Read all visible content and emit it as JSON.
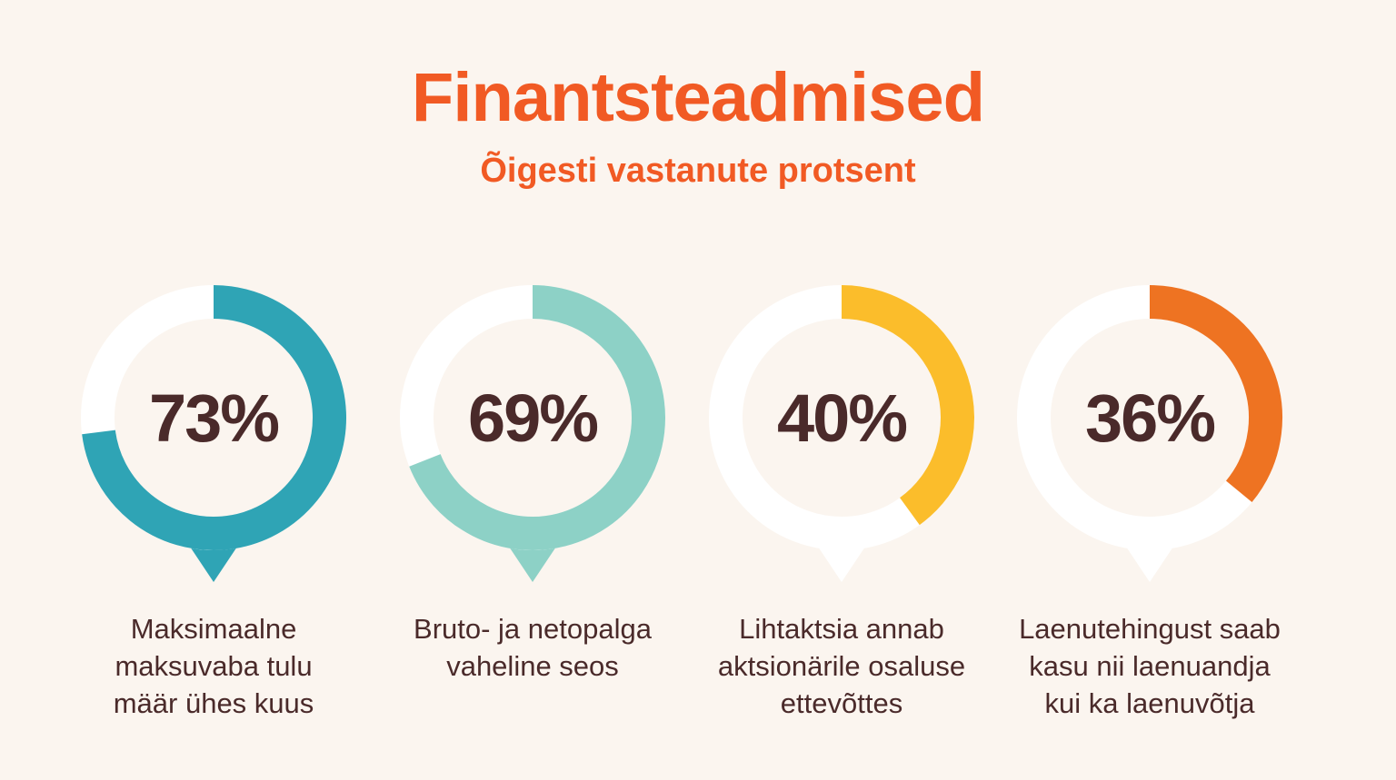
{
  "title": "Finantsteadmised",
  "subtitle": "Õigesti vastanute protsent",
  "chart_data": {
    "type": "pie",
    "title": "Finantsteadmised",
    "subtitle": "Õigesti vastanute protsent",
    "items": [
      {
        "value": 73,
        "label": "73%",
        "caption": "Maksimaalne\nmaksuvaba tulu\nmäär ühes kuus",
        "color": "#2fa4b5",
        "point_color": "#2fa4b5"
      },
      {
        "value": 69,
        "label": "69%",
        "caption": "Bruto- ja netopalga\nvaheline seos",
        "color": "#8dd1c6",
        "point_color": "#8dd1c6"
      },
      {
        "value": 40,
        "label": "40%",
        "caption": "Lihtaktsia annab\naktsionärile osaluse\nettevõttes",
        "color": "#fbbd2b",
        "point_color": "#ffffff"
      },
      {
        "value": 36,
        "label": "36%",
        "caption": "Laenutehingust saab\nkasu nii laenuandja\nkui ka laenuvõtja",
        "color": "#ee7322",
        "point_color": "#ffffff"
      }
    ]
  },
  "colors": {
    "background": "#fbf5ef",
    "accent": "#f15a24",
    "text": "#4a2a2a",
    "track": "#ffffff"
  }
}
